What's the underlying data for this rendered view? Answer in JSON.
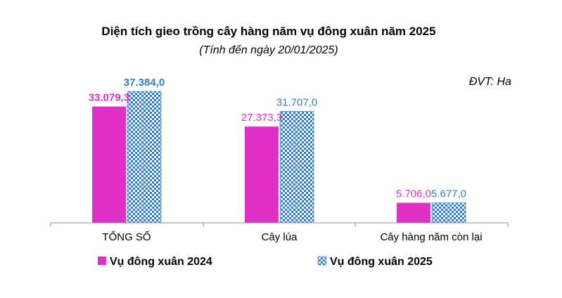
{
  "chart_data": {
    "type": "bar",
    "title": "Diện tích gieo trồng cây hàng năm vụ đông xuân năm 2025",
    "subtitle": "(Tính đến ngày 20/01/2025)",
    "unit": "ĐVT: Ha",
    "categories": [
      "TỔNG SỐ",
      "Cây lúa",
      "Cây hàng năm còn lại"
    ],
    "series": [
      {
        "name": "Vụ đông xuân 2024",
        "values": [
          33079.3,
          27373.3,
          5706.0
        ],
        "labels": [
          "33.079,3",
          "27.373,3",
          "5.706,0"
        ],
        "color": "#e030c8",
        "label_color": "#e030c8",
        "pattern": "solid"
      },
      {
        "name": "Vụ đông xuân 2025",
        "values": [
          37384.0,
          31707.0,
          5677.0
        ],
        "labels": [
          "37.384,0",
          "31.707,0",
          "5.677,0"
        ],
        "color": "#2f78c8",
        "label_color": "#2f7fc4",
        "pattern": "checker"
      }
    ],
    "bold_first_category_labels": true,
    "ylim": [
      0,
      40000
    ],
    "grid": false,
    "legend": "bottom"
  }
}
